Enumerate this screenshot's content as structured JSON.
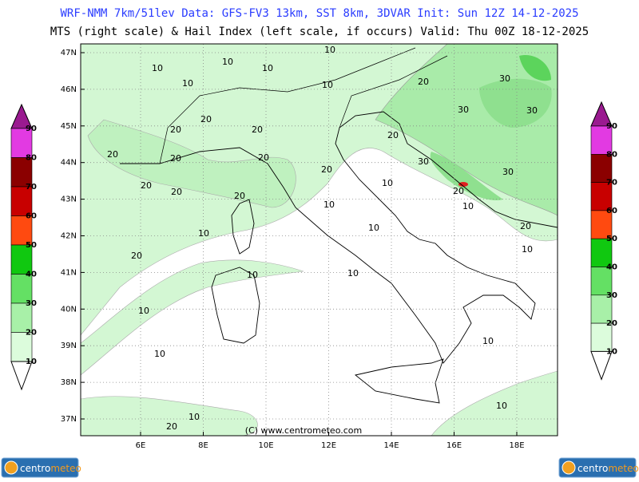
{
  "header": {
    "line1": "WRF-NMM 7km/51lev   Data: GFS-FV3 13km, SST 8km, 3DVAR   Init: Sun 12Z 14-12-2025",
    "line2": "MTS (right scale) & Hail Index (left scale, if occurs) Valid: Thu 00Z 18-12-2025"
  },
  "map": {
    "lat_labels": [
      "47N",
      "46N",
      "45N",
      "44N",
      "43N",
      "42N",
      "41N",
      "40N",
      "39N",
      "38N",
      "37N"
    ],
    "lon_labels": [
      "6E",
      "8E",
      "10E",
      "12E",
      "14E",
      "16E",
      "18E"
    ],
    "contour_labels": [
      "10",
      "10",
      "10",
      "10",
      "10",
      "10",
      "20",
      "30",
      "30",
      "30",
      "20",
      "20",
      "20",
      "20",
      "20",
      "20",
      "20",
      "20",
      "30",
      "30",
      "20",
      "20",
      "20",
      "20",
      "10",
      "10",
      "10",
      "10",
      "10",
      "20",
      "20",
      "10",
      "10",
      "10",
      "10",
      "10",
      "10",
      "10",
      "10",
      "20"
    ],
    "copyright": "(C) www.centrometeo.com"
  },
  "left_scale": {
    "labels": [
      "90",
      "80",
      "70",
      "60",
      "50",
      "40",
      "30",
      "20",
      "10"
    ]
  },
  "right_scale": {
    "labels": [
      "90",
      "80",
      "70",
      "60",
      "50",
      "40",
      "30",
      "20",
      "10"
    ]
  },
  "logos": [
    {
      "part1": "centro",
      "part2": "meteo"
    },
    {
      "part1": "centro",
      "part2": "meteo"
    }
  ]
}
